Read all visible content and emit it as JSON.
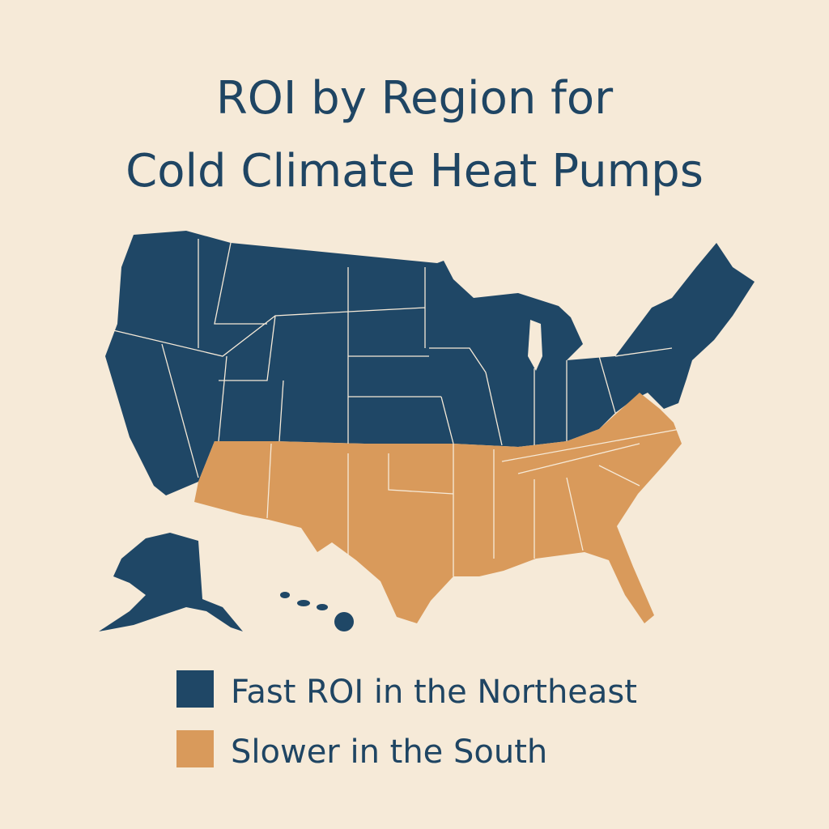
{
  "header": {
    "title": [
      "ROI by Region for",
      "Cold Climate Heat Pumps"
    ]
  },
  "legend": [
    {
      "label": "Fast ROI in the Northeast",
      "color": "#1f4766"
    },
    {
      "label": "Slower in the South",
      "color": "#d99a5b"
    }
  ]
}
